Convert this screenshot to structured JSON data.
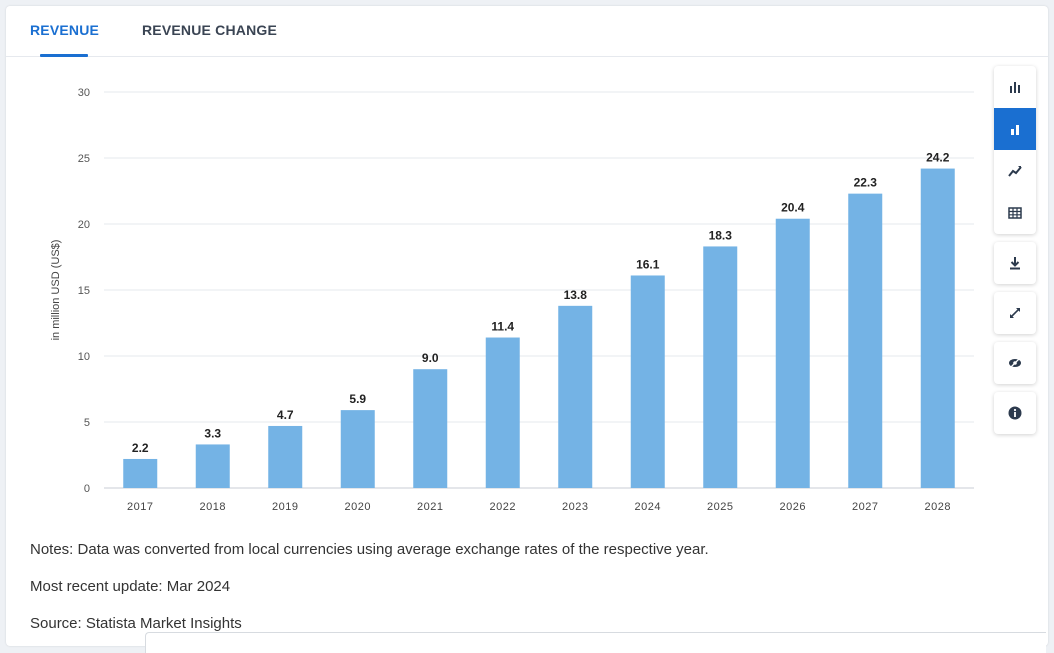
{
  "tabs": [
    {
      "label": "REVENUE",
      "active": true
    },
    {
      "label": "REVENUE CHANGE",
      "active": false
    }
  ],
  "toolbar": {
    "chart_types": [
      {
        "icon": "bar-chart-icon",
        "active": false
      },
      {
        "icon": "bar-chart-icon",
        "active": true
      },
      {
        "icon": "trend-line-icon",
        "active": false
      },
      {
        "icon": "table-icon",
        "active": false
      }
    ],
    "actions": [
      {
        "icon": "download-icon"
      },
      {
        "icon": "fullscreen-icon"
      },
      {
        "icon": "visibility-icon"
      },
      {
        "icon": "info-icon"
      }
    ]
  },
  "chart_data": {
    "type": "bar",
    "categories": [
      "2017",
      "2018",
      "2019",
      "2020",
      "2021",
      "2022",
      "2023",
      "2024",
      "2025",
      "2026",
      "2027",
      "2028"
    ],
    "values": [
      2.2,
      3.3,
      4.7,
      5.9,
      9.0,
      11.4,
      13.8,
      16.1,
      18.3,
      20.4,
      22.3,
      24.2
    ],
    "value_labels": [
      "2.2",
      "3.3",
      "4.7",
      "5.9",
      "9.0",
      "11.4",
      "13.8",
      "16.1",
      "18.3",
      "20.4",
      "22.3",
      "24.2"
    ],
    "ylabel": "in million USD (US$)",
    "ylim": [
      0,
      30
    ],
    "yticks": [
      0,
      5,
      10,
      15,
      20,
      25,
      30
    ],
    "ytick_labels": [
      "0",
      "5",
      "10",
      "15",
      "20",
      "25",
      "30"
    ],
    "grid": true,
    "bar_color": "#74b3e5"
  },
  "notes": {
    "line1": "Notes: Data was converted from local currencies using average exchange rates of the respective year.",
    "line2": "Most recent update: Mar 2024",
    "line3": "Source: Statista Market Insights"
  }
}
